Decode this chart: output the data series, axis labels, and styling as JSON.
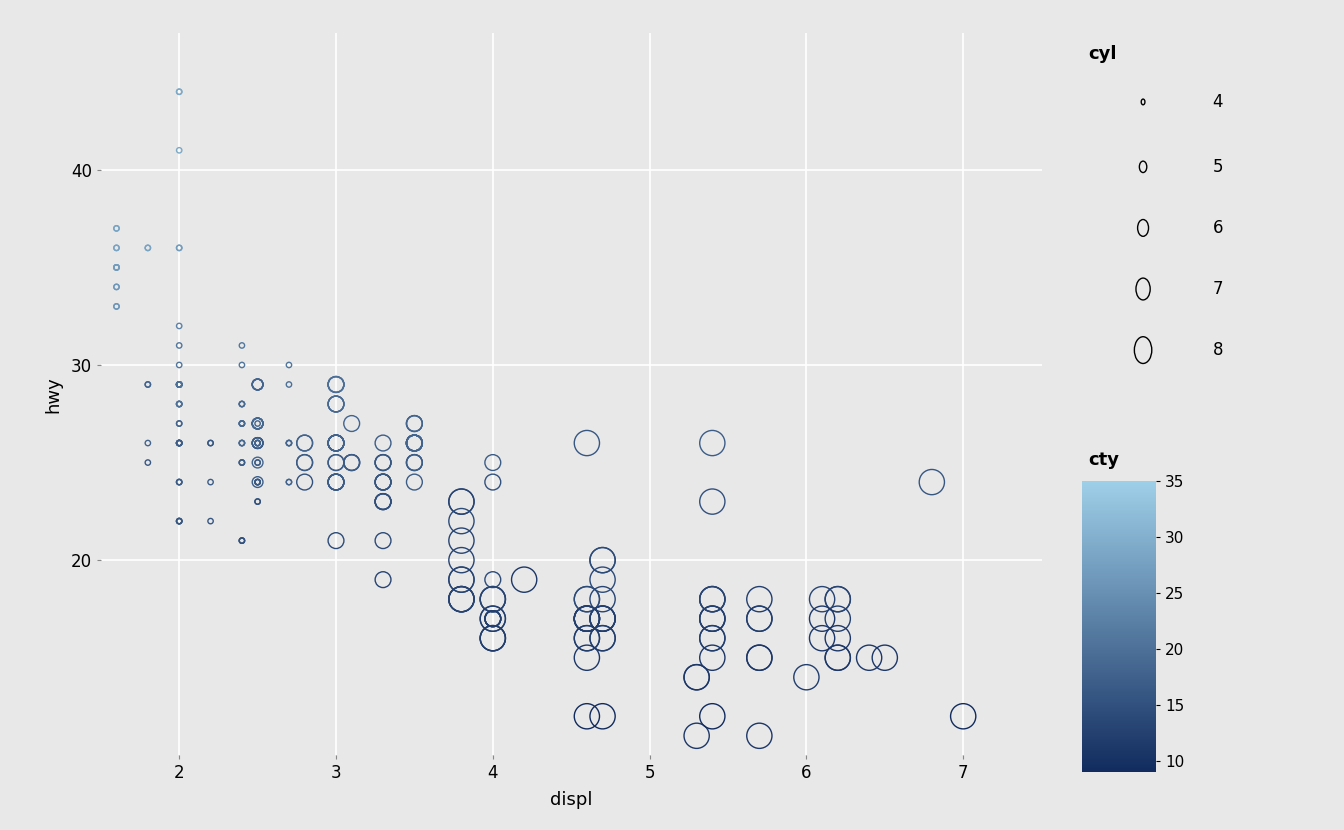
{
  "title": "",
  "xlabel": "displ",
  "ylabel": "hwy",
  "bg_color": "#e8e8e8",
  "panel_bg": "#e8e8e8",
  "fig_bg": "#e8e8e8",
  "grid_color": "#ffffff",
  "point_edgecolor_base": "#4472a8",
  "xlim": [
    1.5,
    7.5
  ],
  "ylim": [
    10,
    47
  ],
  "xticks": [
    2,
    3,
    4,
    5,
    6,
    7
  ],
  "yticks": [
    20,
    30,
    40
  ],
  "cyl_sizes": {
    "4": 15,
    "5": 60,
    "6": 130,
    "7": 220,
    "8": 330
  },
  "cty_cmap_low": "#112b5e",
  "cty_cmap_high": "#9ecfe8",
  "cty_range": [
    9,
    35
  ],
  "cbar_ticks": [
    10,
    15,
    20,
    25,
    30,
    35
  ],
  "legend_cyl_title": "cyl",
  "legend_cty_title": "cty",
  "mpg_data": [
    [
      1.8,
      29,
      4,
      18
    ],
    [
      1.8,
      29,
      4,
      18
    ],
    [
      2.0,
      31,
      4,
      21
    ],
    [
      2.0,
      30,
      4,
      21
    ],
    [
      2.8,
      26,
      6,
      16
    ],
    [
      2.8,
      26,
      6,
      18
    ],
    [
      3.1,
      27,
      6,
      18
    ],
    [
      1.8,
      26,
      4,
      18
    ],
    [
      1.8,
      25,
      4,
      16
    ],
    [
      2.0,
      28,
      4,
      20
    ],
    [
      2.0,
      27,
      4,
      19
    ],
    [
      2.8,
      25,
      6,
      15
    ],
    [
      2.8,
      25,
      6,
      17
    ],
    [
      3.1,
      25,
      6,
      17
    ],
    [
      3.1,
      25,
      6,
      15
    ],
    [
      2.8,
      24,
      6,
      15
    ],
    [
      3.1,
      25,
      6,
      17
    ],
    [
      4.2,
      19,
      8,
      11
    ],
    [
      5.3,
      14,
      8,
      11
    ],
    [
      5.3,
      14,
      8,
      11
    ],
    [
      5.3,
      11,
      8,
      11
    ],
    [
      5.7,
      11,
      8,
      11
    ],
    [
      6.0,
      14,
      8,
      12
    ],
    [
      1.8,
      36,
      4,
      28
    ],
    [
      1.8,
      36,
      4,
      28
    ],
    [
      2.0,
      29,
      4,
      20
    ],
    [
      2.0,
      29,
      4,
      20
    ],
    [
      2.0,
      28,
      4,
      20
    ],
    [
      2.0,
      29,
      4,
      21
    ],
    [
      2.0,
      26,
      4,
      18
    ],
    [
      2.0,
      26,
      4,
      18
    ],
    [
      2.0,
      26,
      4,
      18
    ],
    [
      2.0,
      26,
      4,
      20
    ],
    [
      2.2,
      26,
      4,
      17
    ],
    [
      2.2,
      26,
      4,
      16
    ],
    [
      2.5,
      26,
      4,
      17
    ],
    [
      2.5,
      26,
      4,
      17
    ],
    [
      3.0,
      24,
      6,
      15
    ],
    [
      3.0,
      21,
      6,
      14
    ],
    [
      2.0,
      44,
      4,
      29
    ],
    [
      2.0,
      44,
      4,
      29
    ],
    [
      2.0,
      41,
      4,
      29
    ],
    [
      2.0,
      29,
      4,
      20
    ],
    [
      2.0,
      29,
      4,
      20
    ],
    [
      1.6,
      36,
      4,
      28
    ],
    [
      1.6,
      36,
      4,
      28
    ],
    [
      1.6,
      35,
      4,
      26
    ],
    [
      1.6,
      35,
      4,
      26
    ],
    [
      1.6,
      33,
      4,
      26
    ],
    [
      1.6,
      35,
      4,
      26
    ],
    [
      1.6,
      37,
      4,
      28
    ],
    [
      1.6,
      37,
      4,
      28
    ],
    [
      1.6,
      33,
      4,
      26
    ],
    [
      2.0,
      36,
      4,
      27
    ],
    [
      2.0,
      36,
      4,
      27
    ],
    [
      2.0,
      29,
      4,
      21
    ],
    [
      2.0,
      26,
      4,
      17
    ],
    [
      2.0,
      27,
      4,
      18
    ],
    [
      2.0,
      24,
      4,
      17
    ],
    [
      2.0,
      24,
      4,
      17
    ],
    [
      2.0,
      24,
      4,
      17
    ],
    [
      2.0,
      22,
      4,
      16
    ],
    [
      2.0,
      22,
      4,
      16
    ],
    [
      2.5,
      27,
      5,
      17
    ],
    [
      2.5,
      27,
      5,
      17
    ],
    [
      2.5,
      26,
      5,
      18
    ],
    [
      2.5,
      25,
      5,
      18
    ],
    [
      2.5,
      24,
      5,
      17
    ],
    [
      2.5,
      27,
      5,
      17
    ],
    [
      2.5,
      27,
      5,
      16
    ],
    [
      2.5,
      26,
      5,
      15
    ],
    [
      2.5,
      26,
      5,
      17
    ],
    [
      2.5,
      26,
      5,
      17
    ],
    [
      2.5,
      29,
      5,
      20
    ],
    [
      2.5,
      29,
      5,
      20
    ],
    [
      2.5,
      29,
      5,
      18
    ],
    [
      2.5,
      29,
      5,
      18
    ],
    [
      2.5,
      29,
      5,
      18
    ],
    [
      3.3,
      26,
      6,
      17
    ],
    [
      3.3,
      25,
      6,
      17
    ],
    [
      3.3,
      23,
      6,
      14
    ],
    [
      3.3,
      25,
      6,
      16
    ],
    [
      3.3,
      24,
      6,
      15
    ],
    [
      3.3,
      25,
      6,
      16
    ],
    [
      3.3,
      23,
      6,
      14
    ],
    [
      3.3,
      23,
      6,
      14
    ],
    [
      3.3,
      23,
      6,
      15
    ],
    [
      3.3,
      24,
      6,
      15
    ],
    [
      3.8,
      23,
      8,
      13
    ],
    [
      3.8,
      23,
      8,
      13
    ],
    [
      3.8,
      22,
      8,
      14
    ],
    [
      3.8,
      21,
      8,
      13
    ],
    [
      3.8,
      20,
      8,
      13
    ],
    [
      3.8,
      18,
      8,
      11
    ],
    [
      5.7,
      18,
      8,
      12
    ],
    [
      5.7,
      17,
      8,
      11
    ],
    [
      4.7,
      18,
      8,
      13
    ],
    [
      4.7,
      17,
      8,
      12
    ],
    [
      4.7,
      16,
      8,
      12
    ],
    [
      4.7,
      16,
      8,
      12
    ],
    [
      4.7,
      17,
      8,
      12
    ],
    [
      4.7,
      17,
      8,
      12
    ],
    [
      4.7,
      12,
      8,
      9
    ],
    [
      5.7,
      17,
      8,
      12
    ],
    [
      5.7,
      15,
      8,
      10
    ],
    [
      6.1,
      16,
      8,
      11
    ],
    [
      6.2,
      18,
      8,
      12
    ],
    [
      6.2,
      17,
      8,
      12
    ],
    [
      6.2,
      18,
      8,
      13
    ],
    [
      6.2,
      15,
      8,
      12
    ],
    [
      6.2,
      15,
      8,
      11
    ],
    [
      6.2,
      16,
      8,
      11
    ],
    [
      7.0,
      12,
      8,
      9
    ],
    [
      2.0,
      29,
      4,
      20
    ],
    [
      2.0,
      29,
      4,
      20
    ],
    [
      2.0,
      29,
      4,
      20
    ],
    [
      2.0,
      29,
      4,
      20
    ],
    [
      2.0,
      26,
      4,
      17
    ],
    [
      2.0,
      26,
      4,
      17
    ],
    [
      2.0,
      28,
      4,
      20
    ],
    [
      2.5,
      27,
      5,
      18
    ],
    [
      2.5,
      27,
      5,
      19
    ],
    [
      3.0,
      26,
      6,
      18
    ],
    [
      3.0,
      25,
      6,
      16
    ],
    [
      3.0,
      25,
      6,
      17
    ],
    [
      3.0,
      29,
      6,
      20
    ],
    [
      3.0,
      29,
      6,
      20
    ],
    [
      3.0,
      29,
      6,
      19
    ],
    [
      3.0,
      28,
      6,
      18
    ],
    [
      3.0,
      28,
      6,
      18
    ],
    [
      3.0,
      26,
      6,
      17
    ],
    [
      3.0,
      26,
      6,
      17
    ],
    [
      3.0,
      26,
      6,
      17
    ],
    [
      3.0,
      24,
      6,
      16
    ],
    [
      3.0,
      24,
      6,
      17
    ],
    [
      3.0,
      24,
      6,
      17
    ],
    [
      3.0,
      24,
      6,
      17
    ],
    [
      2.4,
      25,
      4,
      18
    ],
    [
      2.4,
      25,
      4,
      18
    ],
    [
      2.4,
      28,
      4,
      19
    ],
    [
      2.4,
      27,
      4,
      18
    ],
    [
      2.4,
      28,
      4,
      18
    ],
    [
      2.4,
      27,
      4,
      18
    ],
    [
      2.4,
      26,
      4,
      17
    ],
    [
      2.4,
      26,
      4,
      17
    ],
    [
      2.4,
      25,
      4,
      17
    ],
    [
      2.4,
      28,
      4,
      19
    ],
    [
      2.5,
      27,
      4,
      18
    ],
    [
      2.5,
      26,
      4,
      18
    ],
    [
      2.5,
      25,
      4,
      17
    ],
    [
      2.5,
      26,
      4,
      18
    ],
    [
      2.5,
      24,
      4,
      16
    ],
    [
      2.5,
      24,
      4,
      17
    ],
    [
      2.5,
      23,
      4,
      15
    ],
    [
      2.5,
      24,
      4,
      17
    ],
    [
      2.5,
      23,
      4,
      15
    ],
    [
      2.5,
      24,
      4,
      16
    ],
    [
      2.5,
      25,
      4,
      17
    ],
    [
      3.3,
      24,
      6,
      16
    ],
    [
      3.3,
      24,
      6,
      16
    ],
    [
      3.3,
      21,
      6,
      14
    ],
    [
      3.3,
      19,
      6,
      13
    ],
    [
      3.8,
      18,
      8,
      13
    ],
    [
      3.8,
      19,
      8,
      14
    ],
    [
      3.8,
      18,
      8,
      12
    ],
    [
      3.8,
      19,
      8,
      13
    ],
    [
      3.8,
      18,
      8,
      13
    ],
    [
      4.0,
      18,
      8,
      14
    ],
    [
      4.0,
      17,
      8,
      13
    ],
    [
      4.0,
      18,
      8,
      13
    ],
    [
      4.0,
      18,
      8,
      13
    ],
    [
      4.0,
      17,
      8,
      12
    ],
    [
      4.0,
      16,
      8,
      11
    ],
    [
      4.0,
      16,
      8,
      11
    ],
    [
      4.0,
      16,
      8,
      12
    ],
    [
      4.6,
      12,
      8,
      9
    ],
    [
      4.6,
      17,
      8,
      13
    ],
    [
      4.6,
      17,
      8,
      13
    ],
    [
      4.6,
      16,
      8,
      11
    ],
    [
      5.4,
      18,
      8,
      13
    ],
    [
      5.4,
      15,
      8,
      11
    ],
    [
      5.4,
      16,
      8,
      12
    ],
    [
      5.4,
      12,
      8,
      9
    ],
    [
      4.0,
      17,
      6,
      13
    ],
    [
      4.0,
      17,
      6,
      12
    ],
    [
      4.0,
      17,
      6,
      12
    ],
    [
      4.0,
      17,
      6,
      13
    ],
    [
      4.0,
      17,
      6,
      12
    ],
    [
      4.6,
      26,
      8,
      16
    ],
    [
      5.4,
      23,
      8,
      15
    ],
    [
      5.4,
      26,
      8,
      17
    ],
    [
      4.0,
      25,
      6,
      17
    ],
    [
      4.0,
      24,
      6,
      15
    ],
    [
      4.0,
      19,
      6,
      14
    ],
    [
      4.6,
      15,
      8,
      11
    ],
    [
      5.4,
      17,
      8,
      11
    ],
    [
      5.4,
      17,
      8,
      13
    ],
    [
      6.5,
      15,
      8,
      11
    ],
    [
      2.4,
      26,
      4,
      19
    ],
    [
      3.0,
      26,
      6,
      17
    ],
    [
      3.5,
      27,
      6,
      18
    ],
    [
      3.5,
      26,
      6,
      18
    ],
    [
      3.5,
      24,
      6,
      17
    ],
    [
      3.5,
      26,
      6,
      17
    ],
    [
      3.5,
      26,
      6,
      18
    ],
    [
      3.5,
      26,
      6,
      18
    ],
    [
      3.5,
      26,
      6,
      18
    ],
    [
      3.5,
      26,
      6,
      18
    ],
    [
      3.5,
      25,
      6,
      17
    ],
    [
      3.5,
      27,
      6,
      18
    ],
    [
      3.5,
      25,
      6,
      17
    ],
    [
      3.5,
      27,
      6,
      18
    ],
    [
      3.5,
      26,
      6,
      18
    ],
    [
      3.5,
      26,
      6,
      18
    ],
    [
      3.5,
      26,
      6,
      18
    ],
    [
      3.5,
      26,
      6,
      18
    ],
    [
      3.5,
      25,
      6,
      17
    ],
    [
      4.6,
      17,
      8,
      13
    ],
    [
      4.6,
      18,
      8,
      14
    ],
    [
      4.6,
      17,
      8,
      12
    ],
    [
      4.6,
      18,
      8,
      14
    ],
    [
      4.6,
      16,
      8,
      12
    ],
    [
      4.6,
      17,
      8,
      13
    ],
    [
      4.6,
      17,
      8,
      12
    ],
    [
      5.4,
      17,
      8,
      12
    ],
    [
      5.4,
      16,
      8,
      12
    ],
    [
      5.4,
      18,
      8,
      13
    ],
    [
      5.4,
      18,
      8,
      13
    ],
    [
      6.8,
      24,
      8,
      16
    ],
    [
      4.7,
      20,
      8,
      14
    ],
    [
      4.7,
      19,
      8,
      14
    ],
    [
      4.7,
      20,
      8,
      14
    ],
    [
      4.7,
      17,
      8,
      12
    ],
    [
      5.7,
      15,
      8,
      11
    ],
    [
      6.1,
      18,
      8,
      13
    ],
    [
      6.1,
      17,
      8,
      11
    ],
    [
      6.4,
      15,
      8,
      11
    ],
    [
      1.6,
      35,
      4,
      27
    ],
    [
      1.6,
      34,
      4,
      27
    ],
    [
      1.6,
      34,
      4,
      26
    ],
    [
      2.0,
      22,
      4,
      16
    ],
    [
      2.0,
      22,
      4,
      16
    ],
    [
      2.0,
      32,
      4,
      23
    ],
    [
      2.0,
      28,
      4,
      20
    ],
    [
      2.2,
      22,
      4,
      16
    ],
    [
      2.2,
      24,
      4,
      17
    ],
    [
      2.4,
      27,
      4,
      19
    ],
    [
      2.4,
      27,
      4,
      19
    ],
    [
      2.4,
      30,
      4,
      21
    ],
    [
      2.4,
      31,
      4,
      21
    ],
    [
      2.4,
      21,
      4,
      15
    ],
    [
      2.4,
      21,
      4,
      15
    ],
    [
      2.4,
      21,
      4,
      15
    ],
    [
      2.7,
      26,
      4,
      18
    ],
    [
      2.7,
      30,
      4,
      21
    ],
    [
      2.7,
      29,
      4,
      20
    ],
    [
      2.7,
      26,
      4,
      18
    ],
    [
      2.7,
      24,
      4,
      18
    ],
    [
      2.7,
      24,
      4,
      18
    ],
    [
      2.7,
      26,
      4,
      18
    ],
    [
      3.0,
      28,
      6,
      19
    ],
    [
      3.0,
      26,
      6,
      18
    ],
    [
      3.0,
      29,
      6,
      20
    ],
    [
      3.0,
      26,
      6,
      18
    ]
  ]
}
